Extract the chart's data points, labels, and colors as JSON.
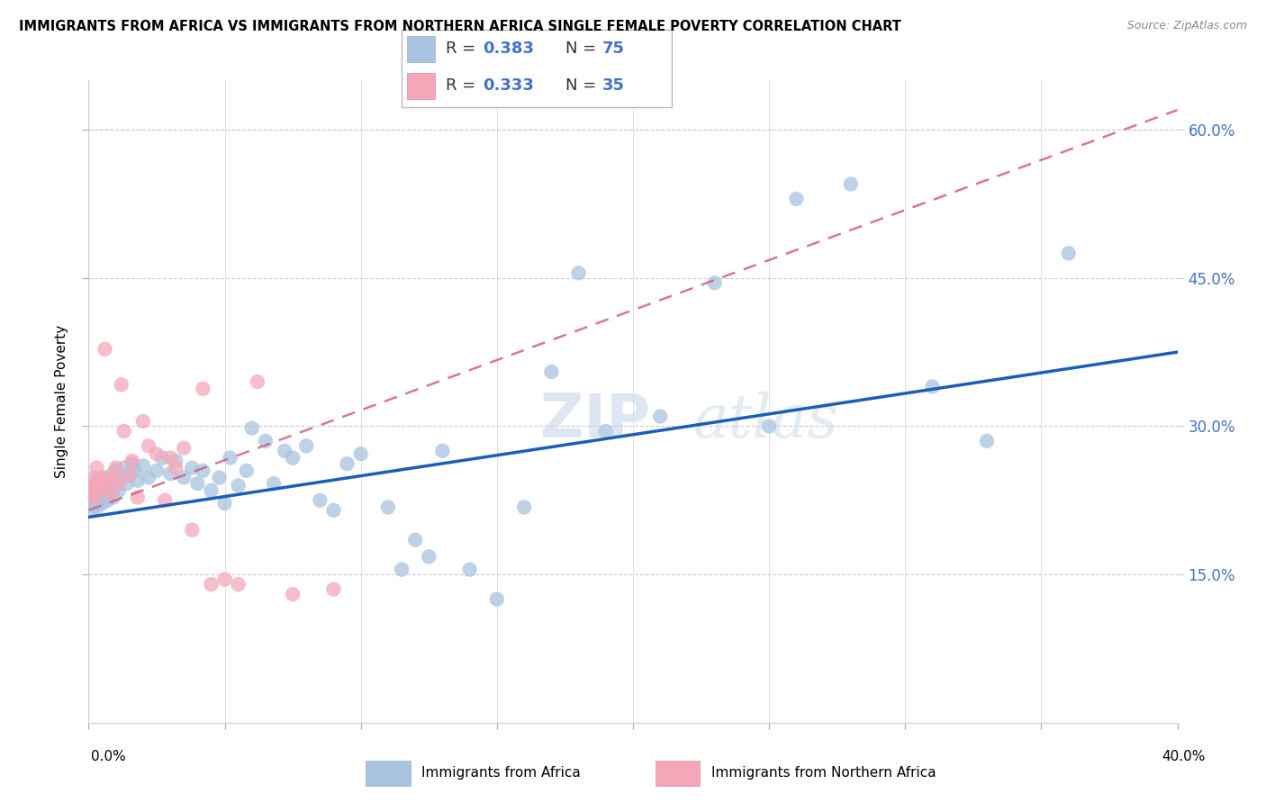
{
  "title": "IMMIGRANTS FROM AFRICA VS IMMIGRANTS FROM NORTHERN AFRICA SINGLE FEMALE POVERTY CORRELATION CHART",
  "source": "Source: ZipAtlas.com",
  "ylabel": "Single Female Poverty",
  "y_ticks": [
    0.15,
    0.3,
    0.45,
    0.6
  ],
  "y_tick_labels": [
    "15.0%",
    "30.0%",
    "45.0%",
    "60.0%"
  ],
  "xlim": [
    0.0,
    0.4
  ],
  "ylim": [
    0.0,
    0.65
  ],
  "R_africa": 0.383,
  "N_africa": 75,
  "R_n_africa": 0.333,
  "N_n_africa": 35,
  "color_africa": "#a8c4e0",
  "color_n_africa": "#f4a7b9",
  "trendline_africa_color": "#1a5eb8",
  "trendline_n_africa_color": "#d06080",
  "watermark_zip": "ZIP",
  "watermark_atlas": "atlas",
  "africa_x": [
    0.001,
    0.001,
    0.002,
    0.002,
    0.002,
    0.003,
    0.003,
    0.003,
    0.004,
    0.004,
    0.005,
    0.005,
    0.005,
    0.006,
    0.006,
    0.007,
    0.007,
    0.008,
    0.008,
    0.009,
    0.01,
    0.01,
    0.011,
    0.012,
    0.013,
    0.014,
    0.015,
    0.016,
    0.017,
    0.018,
    0.02,
    0.022,
    0.025,
    0.027,
    0.03,
    0.032,
    0.035,
    0.038,
    0.04,
    0.042,
    0.045,
    0.048,
    0.05,
    0.052,
    0.055,
    0.058,
    0.06,
    0.065,
    0.068,
    0.072,
    0.075,
    0.08,
    0.085,
    0.09,
    0.095,
    0.1,
    0.11,
    0.115,
    0.12,
    0.125,
    0.13,
    0.14,
    0.15,
    0.16,
    0.17,
    0.18,
    0.19,
    0.21,
    0.23,
    0.25,
    0.26,
    0.28,
    0.31,
    0.33,
    0.36
  ],
  "africa_y": [
    0.215,
    0.225,
    0.22,
    0.23,
    0.24,
    0.218,
    0.235,
    0.245,
    0.228,
    0.242,
    0.222,
    0.238,
    0.248,
    0.23,
    0.245,
    0.225,
    0.24,
    0.235,
    0.25,
    0.228,
    0.24,
    0.255,
    0.235,
    0.248,
    0.258,
    0.242,
    0.252,
    0.262,
    0.255,
    0.245,
    0.26,
    0.248,
    0.255,
    0.268,
    0.252,
    0.265,
    0.248,
    0.258,
    0.242,
    0.255,
    0.235,
    0.248,
    0.222,
    0.268,
    0.24,
    0.255,
    0.298,
    0.285,
    0.242,
    0.275,
    0.268,
    0.28,
    0.225,
    0.215,
    0.262,
    0.272,
    0.218,
    0.155,
    0.185,
    0.168,
    0.275,
    0.155,
    0.125,
    0.218,
    0.355,
    0.455,
    0.295,
    0.31,
    0.445,
    0.3,
    0.53,
    0.545,
    0.34,
    0.285,
    0.475
  ],
  "n_africa_x": [
    0.001,
    0.001,
    0.002,
    0.002,
    0.003,
    0.003,
    0.004,
    0.005,
    0.005,
    0.006,
    0.007,
    0.008,
    0.009,
    0.01,
    0.011,
    0.012,
    0.013,
    0.015,
    0.016,
    0.018,
    0.02,
    0.022,
    0.025,
    0.028,
    0.03,
    0.032,
    0.035,
    0.038,
    0.042,
    0.045,
    0.05,
    0.055,
    0.062,
    0.075,
    0.09
  ],
  "n_africa_y": [
    0.23,
    0.24,
    0.228,
    0.248,
    0.238,
    0.258,
    0.242,
    0.235,
    0.248,
    0.378,
    0.245,
    0.232,
    0.248,
    0.258,
    0.242,
    0.342,
    0.295,
    0.25,
    0.265,
    0.228,
    0.305,
    0.28,
    0.272,
    0.225,
    0.268,
    0.258,
    0.278,
    0.195,
    0.338,
    0.14,
    0.145,
    0.14,
    0.345,
    0.13,
    0.135
  ],
  "africa_trend": [
    0.0,
    0.4,
    0.208,
    0.375
  ],
  "n_africa_trend": [
    0.0,
    0.4,
    0.215,
    0.62
  ]
}
